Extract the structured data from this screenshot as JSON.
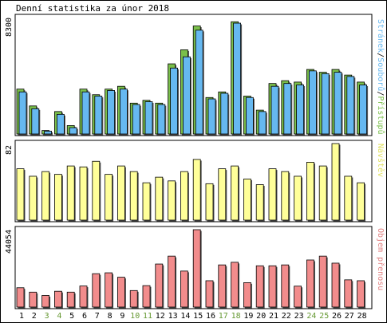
{
  "title": "Denní statistika za únor 2018",
  "colors": {
    "weekday_label": "#000000",
    "weekend_label": "#669933",
    "hits_bar": "#7ABF4A",
    "files_bar": "#66B8F0",
    "visits_bar": "#FFFF99",
    "bytes_bar": "#F28C8C",
    "panel_border": "#000000"
  },
  "chart_data": [
    {
      "type": "bar",
      "title": "",
      "ylabel": "Stránek/Souborů/Přístupů",
      "ymax_label": "8300",
      "ylim": [
        0,
        8300
      ],
      "categories": [
        "1",
        "2",
        "3",
        "4",
        "5",
        "6",
        "7",
        "8",
        "9",
        "10",
        "11",
        "12",
        "13",
        "14",
        "15",
        "16",
        "17",
        "18",
        "19",
        "20",
        "21",
        "22",
        "23",
        "24",
        "25",
        "26",
        "27",
        "28"
      ],
      "weekend_days": [
        "3",
        "4",
        "10",
        "11",
        "17",
        "18",
        "24",
        "25"
      ],
      "series": [
        {
          "name": "Přístupů",
          "values": [
            3200,
            2000,
            250,
            1600,
            600,
            3200,
            2800,
            3200,
            3400,
            2200,
            2400,
            2200,
            5000,
            6000,
            7700,
            2600,
            3000,
            8000,
            2700,
            1700,
            3600,
            3800,
            3700,
            4600,
            4400,
            4600,
            4200,
            3700
          ]
        },
        {
          "name": "Souborů",
          "values": [
            3000,
            1800,
            200,
            1400,
            450,
            3000,
            2700,
            3100,
            3200,
            2100,
            2300,
            2100,
            4700,
            5500,
            7400,
            2500,
            2900,
            7900,
            2600,
            1600,
            3400,
            3600,
            3500,
            4500,
            4300,
            4400,
            4100,
            3500
          ]
        },
        {
          "name": "Stránek",
          "values": [
            0,
            0,
            0,
            0,
            0,
            0,
            0,
            0,
            0,
            0,
            0,
            0,
            0,
            0,
            0,
            0,
            0,
            0,
            0,
            0,
            0,
            0,
            0,
            0,
            0,
            0,
            0,
            0
          ]
        }
      ]
    },
    {
      "type": "bar",
      "title": "",
      "ylabel": "Návštěv",
      "ymax_label": "82",
      "ylim": [
        0,
        82
      ],
      "categories": [
        "1",
        "2",
        "3",
        "4",
        "5",
        "6",
        "7",
        "8",
        "9",
        "10",
        "11",
        "12",
        "13",
        "14",
        "15",
        "16",
        "17",
        "18",
        "19",
        "20",
        "21",
        "22",
        "23",
        "24",
        "25",
        "26",
        "27",
        "28"
      ],
      "series": [
        {
          "name": "Návštěv",
          "values": [
            55,
            47,
            52,
            49,
            58,
            57,
            63,
            49,
            58,
            52,
            40,
            46,
            42,
            52,
            65,
            39,
            55,
            58,
            44,
            38,
            55,
            52,
            47,
            62,
            58,
            82,
            47,
            40
          ]
        }
      ]
    },
    {
      "type": "bar",
      "title": "",
      "ylabel": "Objem přenosu",
      "ymax_label": "44054",
      "ylim": [
        0,
        44054
      ],
      "categories": [
        "1",
        "2",
        "3",
        "4",
        "5",
        "6",
        "7",
        "8",
        "9",
        "10",
        "11",
        "12",
        "13",
        "14",
        "15",
        "16",
        "17",
        "18",
        "19",
        "20",
        "21",
        "22",
        "23",
        "24",
        "25",
        "26",
        "27",
        "28"
      ],
      "series": [
        {
          "name": "Objem přenosu",
          "values": [
            11000,
            8500,
            6600,
            9000,
            8500,
            12000,
            19000,
            19500,
            17000,
            9400,
            12200,
            24500,
            29000,
            20500,
            44054,
            15000,
            24000,
            25500,
            13900,
            23500,
            23500,
            24000,
            11900,
            26800,
            29000,
            25000,
            15500,
            15000
          ]
        }
      ]
    }
  ]
}
